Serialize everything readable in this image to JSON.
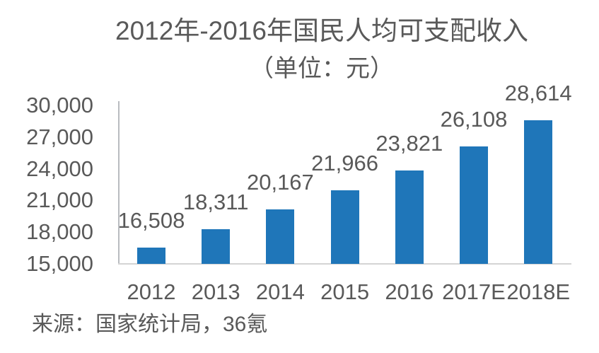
{
  "chart_data": {
    "type": "bar",
    "title": "2012年-2016年国民人均可支配收入",
    "subtitle": "（单位：元）",
    "categories": [
      "2012",
      "2013",
      "2014",
      "2015",
      "2016",
      "2017E",
      "2018E"
    ],
    "values": [
      16508,
      18311,
      20167,
      21966,
      23821,
      26108,
      28614
    ],
    "data_labels": [
      "16,508",
      "18,311",
      "20,167",
      "21,966",
      "23,821",
      "26,108",
      "28,614"
    ],
    "xlabel": "",
    "ylabel": "",
    "ylim": [
      15000,
      30000
    ],
    "y_ticks": {
      "values": [
        30000,
        27000,
        24000,
        21000,
        18000,
        15000
      ],
      "labels": [
        "30,000",
        "27,000",
        "24,000",
        "21,000",
        "18,000",
        "15,000"
      ]
    },
    "grid": false,
    "legend": false,
    "bar_color": "#1f76b9"
  },
  "source_note": "来源：国家统计局，36氪",
  "colors": {
    "bar": "#1f76b9",
    "text": "#595959",
    "y_axis_line": "#b9bcc0",
    "x_axis_line": "#d4d4d4",
    "background": "#ffffff"
  }
}
